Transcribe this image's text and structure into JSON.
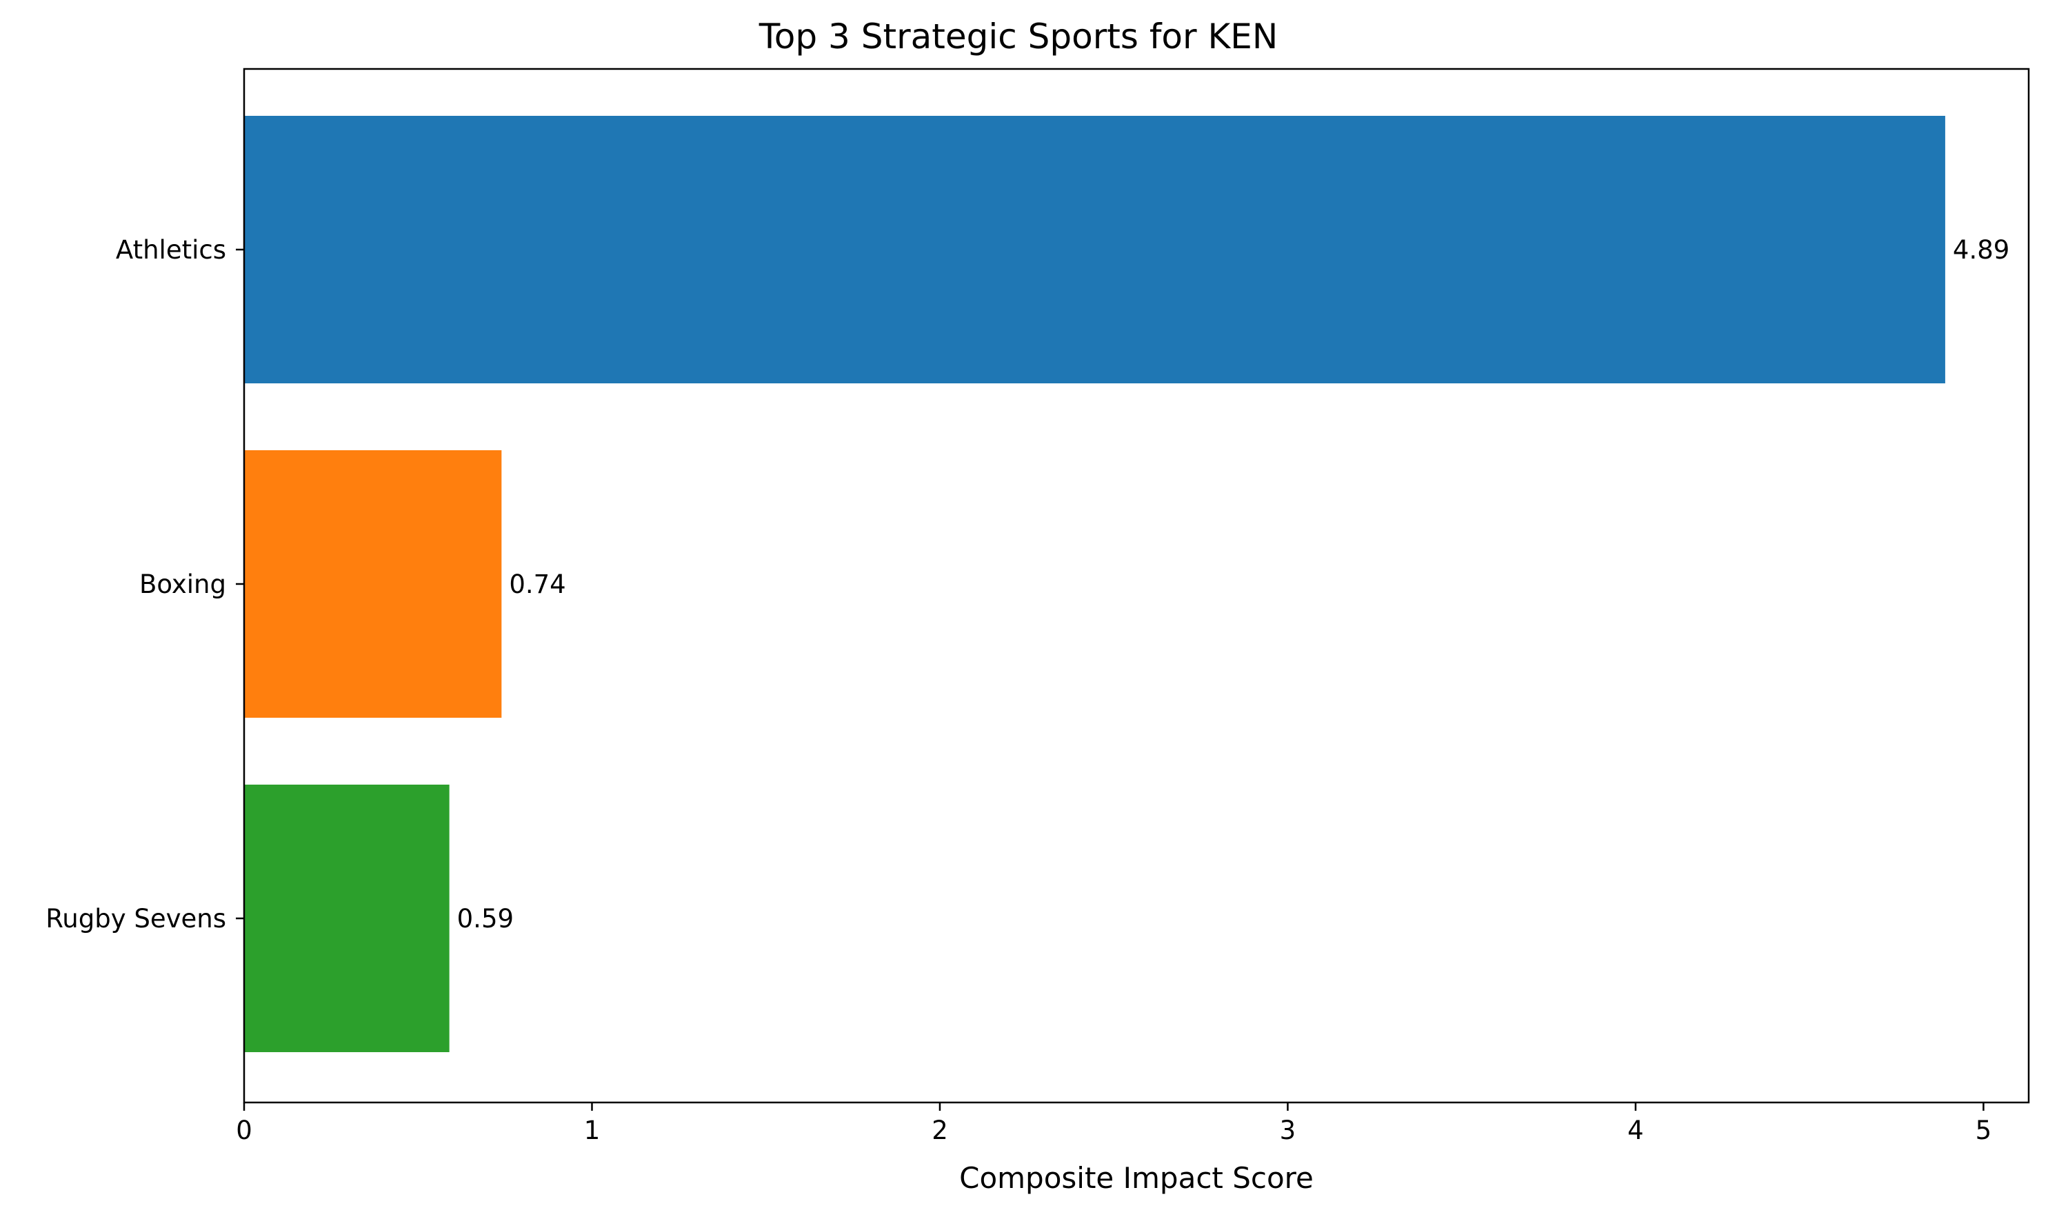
{
  "chart_data": {
    "type": "bar",
    "orientation": "horizontal",
    "title": "Top 3 Strategic Sports for KEN",
    "xlabel": "Composite Impact Score",
    "ylabel": "",
    "categories": [
      "Athletics",
      "Boxing",
      "Rugby Sevens"
    ],
    "values": [
      4.89,
      0.74,
      0.59
    ],
    "value_labels": [
      "4.89",
      "0.74",
      "0.59"
    ],
    "colors": [
      "#1f77b4",
      "#ff7f0e",
      "#2ca02c"
    ],
    "xlim": [
      0,
      5.13
    ],
    "xticks": [
      0,
      1,
      2,
      3,
      4,
      5
    ],
    "xtick_labels": [
      "0",
      "1",
      "2",
      "3",
      "4",
      "5"
    ],
    "grid": false,
    "legend": "none"
  }
}
